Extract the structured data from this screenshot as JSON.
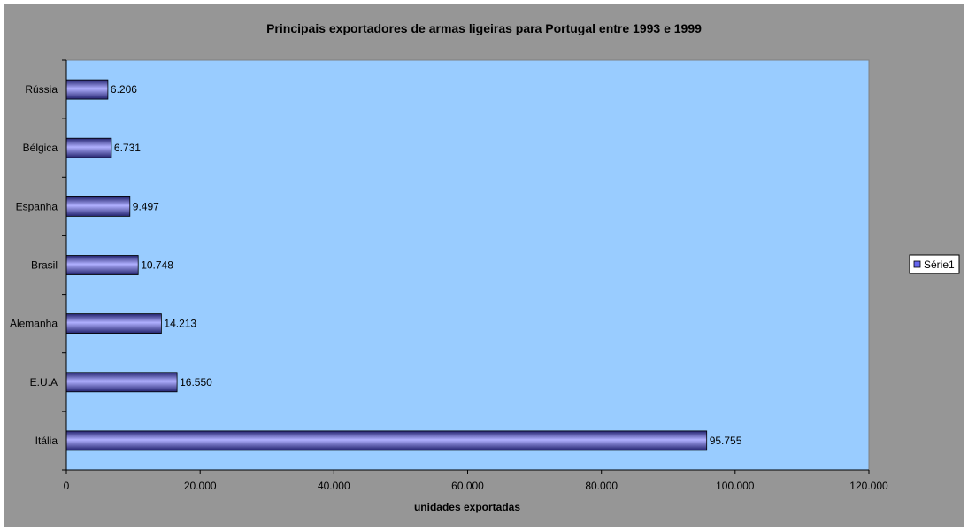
{
  "chart_data": {
    "type": "bar",
    "orientation": "horizontal",
    "title": "Principais exportadores de armas ligeiras para Portugal entre 1993 e 1999",
    "xlabel": "unidades exportadas",
    "ylabel": "",
    "xlim": [
      0,
      120000
    ],
    "x_ticks": [
      0,
      20000,
      40000,
      60000,
      80000,
      100000,
      120000
    ],
    "x_tick_labels": [
      "0",
      "20.000",
      "40.000",
      "60.000",
      "80.000",
      "100.000",
      "120.000"
    ],
    "categories": [
      "Rússia",
      "Bélgica",
      "Espanha",
      "Brasil",
      "Alemanha",
      "E.U.A",
      "Itália"
    ],
    "series": [
      {
        "name": "Série1",
        "values": [
          6206,
          6731,
          9497,
          10748,
          14213,
          16550,
          95755
        ],
        "value_labels": [
          "6.206",
          "6.731",
          "9.497",
          "10.748",
          "14.213",
          "16.550",
          "95.755"
        ]
      }
    ],
    "legend_position": "right",
    "grid": false,
    "colors": {
      "chart_area": "#969696",
      "plot_area": "#99ccff",
      "bar_light": "#b0b0ff",
      "bar_mid": "#6666ee",
      "bar_dark": "#22226e"
    }
  }
}
